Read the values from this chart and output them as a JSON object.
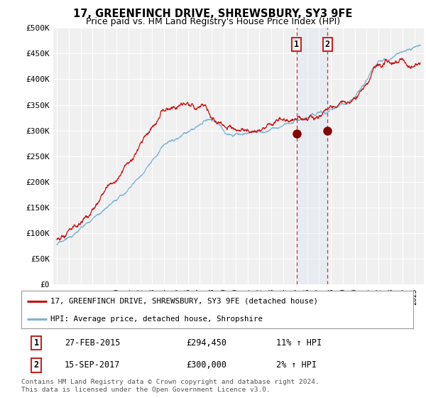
{
  "title": "17, GREENFINCH DRIVE, SHREWSBURY, SY3 9FE",
  "subtitle": "Price paid vs. HM Land Registry's House Price Index (HPI)",
  "ylabel_ticks": [
    "£0",
    "£50K",
    "£100K",
    "£150K",
    "£200K",
    "£250K",
    "£300K",
    "£350K",
    "£400K",
    "£450K",
    "£500K"
  ],
  "ytick_values": [
    0,
    50000,
    100000,
    150000,
    200000,
    250000,
    300000,
    350000,
    400000,
    450000,
    500000
  ],
  "ylim": [
    0,
    500000
  ],
  "xlim_start": 1994.7,
  "xlim_end": 2025.8,
  "hpi_color": "#7ab3d4",
  "price_color": "#cc1111",
  "sale1_date": 2015.13,
  "sale1_price": 294450,
  "sale2_date": 2017.7,
  "sale2_price": 300000,
  "sale1_label": "27-FEB-2015",
  "sale1_amount": "£294,450",
  "sale1_hpi": "11% ↑ HPI",
  "sale2_label": "15-SEP-2017",
  "sale2_amount": "£300,000",
  "sale2_hpi": "2% ↑ HPI",
  "legend_line1": "17, GREENFINCH DRIVE, SHREWSBURY, SY3 9FE (detached house)",
  "legend_line2": "HPI: Average price, detached house, Shropshire",
  "footer": "Contains HM Land Registry data © Crown copyright and database right 2024.\nThis data is licensed under the Open Government Licence v3.0.",
  "background_color": "#ffffff",
  "plot_bg_color": "#f0f0f0"
}
